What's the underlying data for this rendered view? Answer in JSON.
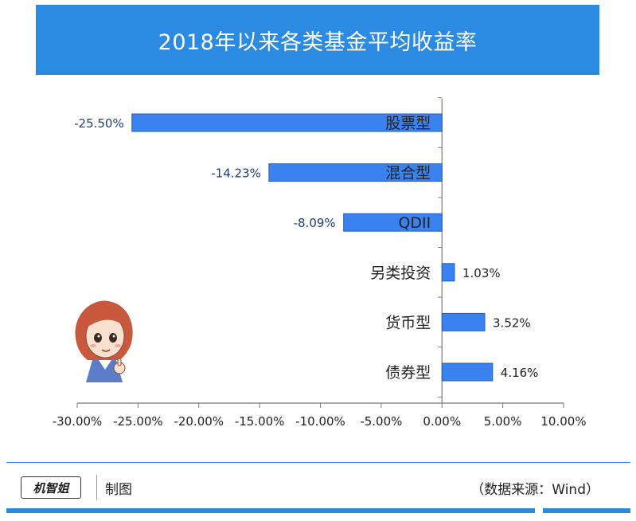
{
  "header": {
    "title": "2018年以来各类基金平均收益率"
  },
  "chart_data": {
    "type": "bar",
    "orientation": "horizontal",
    "categories": [
      "股票型",
      "混合型",
      "QDII",
      "另类投资",
      "货币型",
      "债券型"
    ],
    "values": [
      -25.5,
      -14.23,
      -8.09,
      1.03,
      3.52,
      4.16
    ],
    "value_labels": [
      "-25.50%",
      "-14.23%",
      "-8.09%",
      "1.03%",
      "3.52%",
      "4.16%"
    ],
    "xlim": [
      -30,
      10
    ],
    "x_ticks": [
      -30,
      -25,
      -20,
      -15,
      -10,
      -5,
      0,
      5,
      10
    ],
    "x_tick_labels": [
      "-30.00%",
      "-25.00%",
      "-20.00%",
      "-15.00%",
      "-10.00%",
      "-5.00%",
      "0.00%",
      "5.00%",
      "10.00%"
    ],
    "bar_color": "#3a82f0",
    "grid": false
  },
  "footer": {
    "logo_text": "机智姐",
    "made_label": "制图",
    "source": "（数据来源：Wind）"
  },
  "colors": {
    "accent": "#2b8be2",
    "bar": "#3a82f0"
  },
  "avatar": {
    "icon": "cartoon-girl-thumbs-up-icon"
  }
}
